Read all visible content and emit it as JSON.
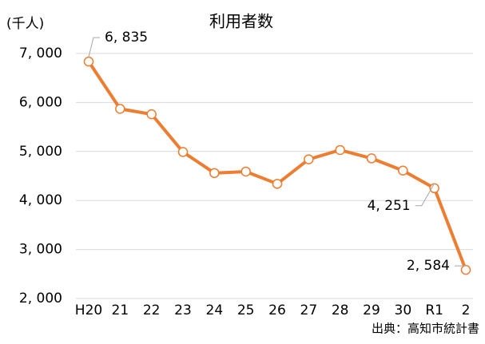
{
  "chart_data": {
    "type": "line",
    "title": "利用者数",
    "y_unit_label": "(千人)",
    "source": "出典：高知市統計書",
    "categories": [
      "H20",
      "21",
      "22",
      "23",
      "24",
      "25",
      "26",
      "27",
      "28",
      "29",
      "30",
      "R1",
      "2"
    ],
    "series": [
      {
        "name": "利用者数",
        "color": "#ed7d31",
        "values": [
          6835,
          5870,
          5760,
          4990,
          4560,
          4590,
          4340,
          4840,
          5030,
          4860,
          4610,
          4251,
          2584
        ],
        "value_labels": [
          "6, 835",
          null,
          null,
          null,
          null,
          null,
          null,
          null,
          null,
          null,
          null,
          "4, 251",
          "2, 584"
        ]
      }
    ],
    "ylim": [
      2000,
      7000
    ],
    "yticks": [
      {
        "value": 2000,
        "label": "2, 000"
      },
      {
        "value": 3000,
        "label": "3, 000"
      },
      {
        "value": 4000,
        "label": "4, 000"
      },
      {
        "value": 5000,
        "label": "5, 000"
      },
      {
        "value": 6000,
        "label": "6, 000"
      },
      {
        "value": 7000,
        "label": "7, 000"
      }
    ],
    "grid": true
  }
}
